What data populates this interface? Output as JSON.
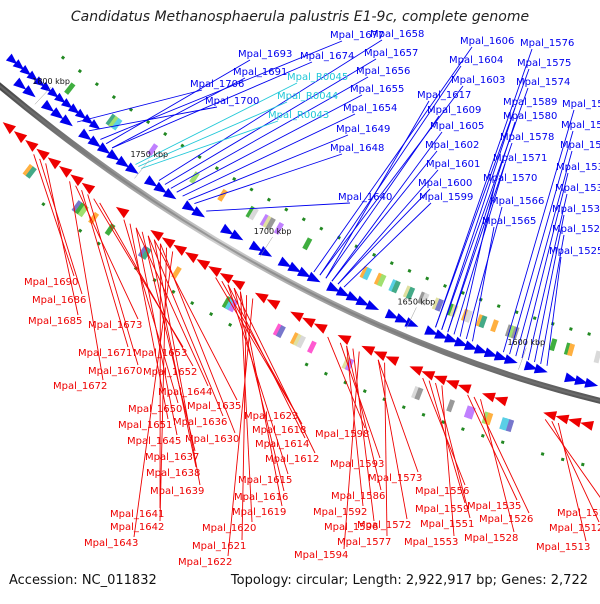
{
  "title": "Candidatus Methanosphaerula palustris E1-9c, complete genome",
  "footer": {
    "accession": "Accession: NC_011832",
    "summary": "Topology: circular; Length: 2,922,917 bp; Genes: 2,722"
  },
  "colors": {
    "forward": "#0000ee",
    "reverse": "#ee0000",
    "rna": "#22c8d8",
    "backbone": "#777777",
    "tick": "#228822"
  },
  "ticks": [
    "1800 kbp",
    "1750 kbp",
    "1700 kbp",
    "1650 kbp",
    "1600 kbp"
  ],
  "forward_labels": [
    "Mpal_1677",
    "Mpal_1693",
    "Mpal_1674",
    "Mpal_1691",
    "Mpal_1706",
    "Mpal_1700",
    "Mpal_1658",
    "Mpal_1657",
    "Mpal_1656",
    "Mpal_1655",
    "Mpal_1654",
    "Mpal_1649",
    "Mpal_1648",
    "Mpal_1640",
    "Mpal_1606",
    "Mpal_1604",
    "Mpal_1603",
    "Mpal_1617",
    "Mpal_1609",
    "Mpal_1605",
    "Mpal_1602",
    "Mpal_1601",
    "Mpal_1600",
    "Mpal_1599",
    "Mpal_1576",
    "Mpal_1575",
    "Mpal_1574",
    "Mpal_1589",
    "Mpal_1580",
    "Mpal_1578",
    "Mpal_1571",
    "Mpal_1570",
    "Mpal_1566",
    "Mpal_1565",
    "Mpal_1552",
    "Mpal_1546",
    "Mpal_1545",
    "Mpal_1539",
    "Mpal_1536",
    "Mpal_1531",
    "Mpal_1529",
    "Mpal_1525"
  ],
  "rna_labels": [
    "Mpal_R0045",
    "Mpal_R0044",
    "Mpal_R0043"
  ],
  "reverse_labels": [
    "Mpal_1690",
    "Mpal_1686",
    "Mpal_1685",
    "Mpal_1673",
    "Mpal_1671",
    "Mpal_1653",
    "Mpal_1670",
    "Mpal_1652",
    "Mpal_1672",
    "Mpal_1644",
    "Mpal_1650",
    "Mpal_1635",
    "Mpal_1651",
    "Mpal_1636",
    "Mpal_1645",
    "Mpal_1630",
    "Mpal_1637",
    "Mpal_1638",
    "Mpal_1639",
    "Mpal_1641",
    "Mpal_1642",
    "Mpal_1643",
    "Mpal_1623",
    "Mpal_1618",
    "Mpal_1614",
    "Mpal_1612",
    "Mpal_1615",
    "Mpal_1616",
    "Mpal_1619",
    "Mpal_1620",
    "Mpal_1621",
    "Mpal_1622",
    "Mpal_1598",
    "Mpal_1593",
    "Mpal_1586",
    "Mpal_1592",
    "Mpal_1596",
    "Mpal_1594",
    "Mpal_1573",
    "Mpal_1572",
    "Mpal_1577",
    "Mpal_1556",
    "Mpal_1559",
    "Mpal_1551",
    "Mpal_1553",
    "Mpal_1535",
    "Mpal_1526",
    "Mpal_1528",
    "Mpal_1515",
    "Mpal_1512",
    "Mpal_1513"
  ]
}
